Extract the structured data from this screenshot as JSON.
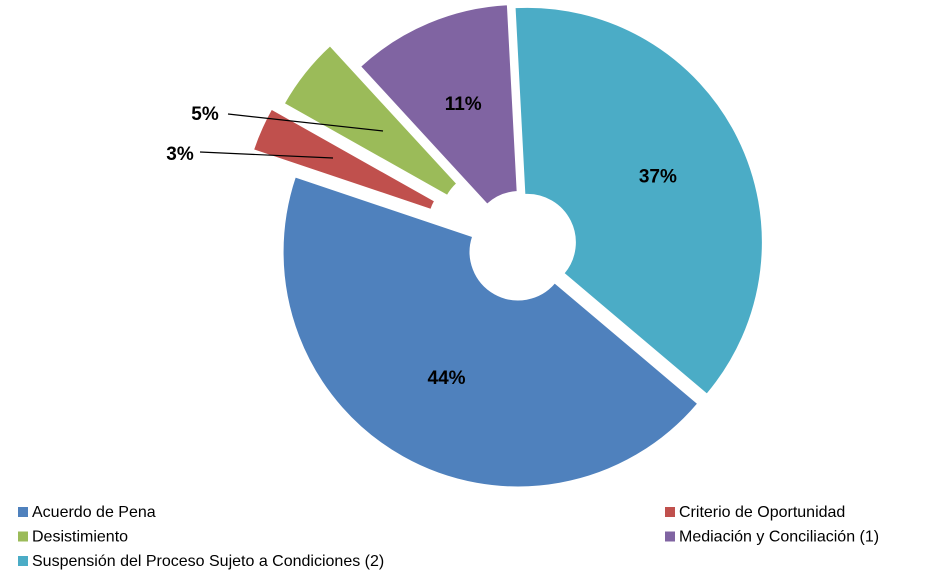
{
  "chart_data": {
    "type": "pie",
    "categories": [
      "Acuerdo de Pena",
      "Criterio de Oportunidad",
      "Desistimiento",
      "Mediación y Conciliación (1)",
      "Suspensión del Proceso Sujeto a Condiciones (2)"
    ],
    "values": [
      44,
      3,
      5,
      11,
      37
    ],
    "value_labels": [
      "44%",
      "3%",
      "5%",
      "11%",
      "37%"
    ],
    "colors": [
      "#4f81bd",
      "#c0504d",
      "#9bbb59",
      "#8064a2",
      "#4bacc6"
    ],
    "legend": "bottom"
  }
}
